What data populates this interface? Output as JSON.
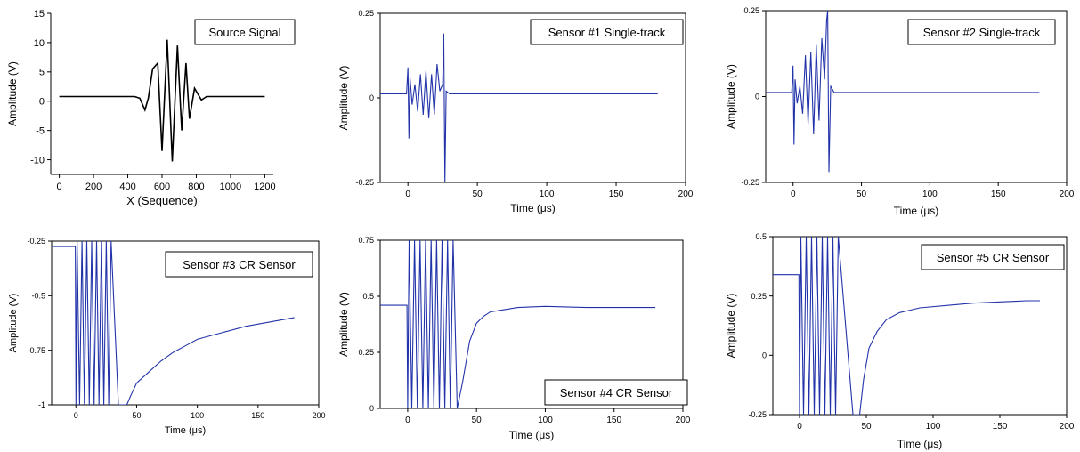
{
  "chart_data": [
    {
      "type": "line",
      "legend": "Source Signal",
      "xlabel": "X (Sequence)",
      "ylabel": "Amplitude (V)",
      "xlim": [
        -50,
        1250
      ],
      "ylim": [
        -12.5,
        15
      ],
      "xticks": [
        "0",
        "200",
        "400",
        "600",
        "800",
        "1000",
        "1200"
      ],
      "xtick_values": [
        0,
        200,
        400,
        600,
        800,
        1000,
        1200
      ],
      "yticks": [
        "-10",
        "-5",
        "0",
        "5",
        "10",
        "15"
      ],
      "ytick_values": [
        -10,
        -5,
        0,
        5,
        10,
        15
      ],
      "color": "#000000",
      "series": [
        {
          "x": [
            0,
            440,
            470,
            500,
            520,
            545,
            575,
            600,
            630,
            660,
            690,
            715,
            740,
            760,
            790,
            830,
            860,
            1200
          ],
          "y": [
            0.8,
            0.8,
            0.5,
            -1.5,
            0.5,
            5.5,
            6.5,
            -8.5,
            10.5,
            -10.3,
            9.5,
            -5,
            6.5,
            -3,
            2.2,
            0.2,
            0.8,
            0.8
          ]
        }
      ]
    },
    {
      "type": "line",
      "legend": "Sensor #1  Single-track",
      "xlabel": "Time (μs)",
      "ylabel": "Amplitude (V)",
      "xlim": [
        -20,
        200
      ],
      "ylim": [
        -0.25,
        0.25
      ],
      "xticks": [
        "0",
        "50",
        "100",
        "150",
        "200"
      ],
      "xtick_values": [
        0,
        50,
        100,
        150,
        200
      ],
      "yticks": [
        "-0.25",
        "0",
        "0.25"
      ],
      "ytick_values": [
        -0.25,
        0,
        0.25
      ],
      "color": "#2233aa",
      "series": [
        {
          "x": [
            -20,
            -1,
            0,
            0.7,
            1.5,
            3,
            5,
            7,
            9,
            11,
            13,
            15,
            17,
            19,
            21,
            23,
            25,
            25.8,
            26.6,
            27.5,
            30,
            180
          ],
          "y": [
            0.012,
            0.012,
            0.09,
            -0.12,
            0.06,
            -0.02,
            0.04,
            -0.04,
            0.07,
            -0.05,
            0.08,
            -0.06,
            0.07,
            -0.05,
            0.1,
            0.02,
            0.04,
            0.19,
            -0.25,
            0.02,
            0.012,
            0.012
          ]
        }
      ]
    },
    {
      "type": "line",
      "legend": "Sensor #2  Single-track",
      "xlabel": "Time (μs)",
      "ylabel": "Amplitude (V)",
      "xlim": [
        -20,
        200
      ],
      "ylim": [
        -0.25,
        0.25
      ],
      "xticks": [
        "0",
        "50",
        "100",
        "150",
        "200"
      ],
      "xtick_values": [
        0,
        50,
        100,
        150,
        200
      ],
      "yticks": [
        "-0.25",
        "0",
        "0.25"
      ],
      "ytick_values": [
        -0.25,
        0,
        0.25
      ],
      "color": "#2233aa",
      "series": [
        {
          "x": [
            -20,
            -1,
            0,
            0.7,
            1.5,
            3,
            5,
            7,
            9,
            11,
            13,
            15,
            17,
            19,
            21,
            23,
            24.5,
            25.3,
            26.2,
            27.5,
            30,
            180
          ],
          "y": [
            0.012,
            0.012,
            0.09,
            -0.14,
            0.05,
            -0.02,
            0.03,
            -0.05,
            0.12,
            -0.08,
            0.13,
            -0.11,
            0.15,
            -0.07,
            0.17,
            0.05,
            0.22,
            0.25,
            -0.22,
            0.03,
            0.012,
            0.012
          ]
        }
      ]
    },
    {
      "type": "line",
      "legend": "Sensor #3  CR Sensor",
      "xlabel": "Time (μs)",
      "ylabel": "Amplitude (V)",
      "xlim": [
        -20,
        200
      ],
      "ylim": [
        -1,
        -0.25
      ],
      "xticks": [
        "0",
        "50",
        "100",
        "150",
        "200"
      ],
      "xtick_values": [
        0,
        50,
        100,
        150,
        200
      ],
      "yticks": [
        "-1",
        "-0.75",
        "-0.5",
        "-0.25"
      ],
      "ytick_values": [
        -1,
        -0.75,
        -0.5,
        -0.25
      ],
      "color": "#2233aa",
      "series": [
        {
          "x": [
            -20,
            -0.5,
            0,
            1,
            3,
            5,
            7,
            9,
            11,
            13,
            15,
            17,
            19,
            21,
            23,
            25,
            27,
            29,
            35,
            42,
            45,
            50,
            60,
            70,
            80,
            90,
            100,
            120,
            140,
            160,
            180
          ],
          "y": [
            -0.275,
            -0.275,
            -1,
            -0.25,
            -1,
            -0.25,
            -1,
            -0.25,
            -1,
            -0.25,
            -1,
            -0.25,
            -1,
            -0.25,
            -1,
            -0.25,
            -1,
            -0.25,
            -1,
            -1,
            -0.96,
            -0.9,
            -0.85,
            -0.8,
            -0.76,
            -0.73,
            -0.7,
            -0.67,
            -0.64,
            -0.62,
            -0.6
          ]
        }
      ]
    },
    {
      "type": "line",
      "legend": "Sensor #4  CR Sensor",
      "xlabel": "Time (μs)",
      "ylabel": "Amplitude (V)",
      "xlim": [
        -20,
        200
      ],
      "ylim": [
        0,
        0.75
      ],
      "xticks": [
        "0",
        "50",
        "100",
        "150",
        "200"
      ],
      "xtick_values": [
        0,
        50,
        100,
        150,
        200
      ],
      "yticks": [
        "0",
        "0.25",
        "0.5",
        "0.75"
      ],
      "ytick_values": [
        0,
        0.25,
        0.5,
        0.75
      ],
      "color": "#2233aa",
      "series": [
        {
          "x": [
            -20,
            -0.5,
            0,
            1,
            3,
            5,
            7,
            9,
            11,
            13,
            15,
            17,
            19,
            21,
            23,
            25,
            27,
            29,
            31,
            33,
            36,
            40,
            45,
            50,
            55,
            60,
            70,
            80,
            100,
            130,
            160,
            180
          ],
          "y": [
            0.46,
            0.46,
            0,
            0.75,
            0,
            0.75,
            0,
            0.75,
            0,
            0.75,
            0,
            0.75,
            0,
            0.75,
            0,
            0.75,
            0,
            0.75,
            0,
            0.75,
            0,
            0.12,
            0.3,
            0.38,
            0.41,
            0.43,
            0.44,
            0.45,
            0.455,
            0.45,
            0.45,
            0.45
          ]
        }
      ]
    },
    {
      "type": "line",
      "legend": "Sensor #5  CR Sensor",
      "xlabel": "Time (μs)",
      "ylabel": "Amplitude (V)",
      "xlim": [
        -20,
        200
      ],
      "ylim": [
        -0.25,
        0.5
      ],
      "xticks": [
        "0",
        "50",
        "100",
        "150",
        "200"
      ],
      "xtick_values": [
        0,
        50,
        100,
        150,
        200
      ],
      "yticks": [
        "-0.25",
        "0",
        "0.25",
        "0.5"
      ],
      "ytick_values": [
        -0.25,
        0,
        0.25,
        0.5
      ],
      "color": "#2233aa",
      "series": [
        {
          "x": [
            -20,
            -0.5,
            0,
            1,
            3,
            5,
            7,
            9,
            11,
            13,
            15,
            17,
            19,
            21,
            23,
            25,
            27,
            29,
            40,
            45,
            48,
            52,
            58,
            65,
            75,
            90,
            110,
            130,
            150,
            170,
            180
          ],
          "y": [
            0.34,
            0.34,
            -0.25,
            0.5,
            -0.25,
            0.5,
            -0.25,
            0.5,
            -0.25,
            0.5,
            -0.25,
            0.5,
            -0.25,
            0.5,
            -0.25,
            0.5,
            -0.25,
            0.5,
            -0.25,
            -0.25,
            -0.1,
            0.03,
            0.1,
            0.15,
            0.18,
            0.2,
            0.21,
            0.22,
            0.225,
            0.23,
            0.23
          ]
        }
      ]
    }
  ]
}
